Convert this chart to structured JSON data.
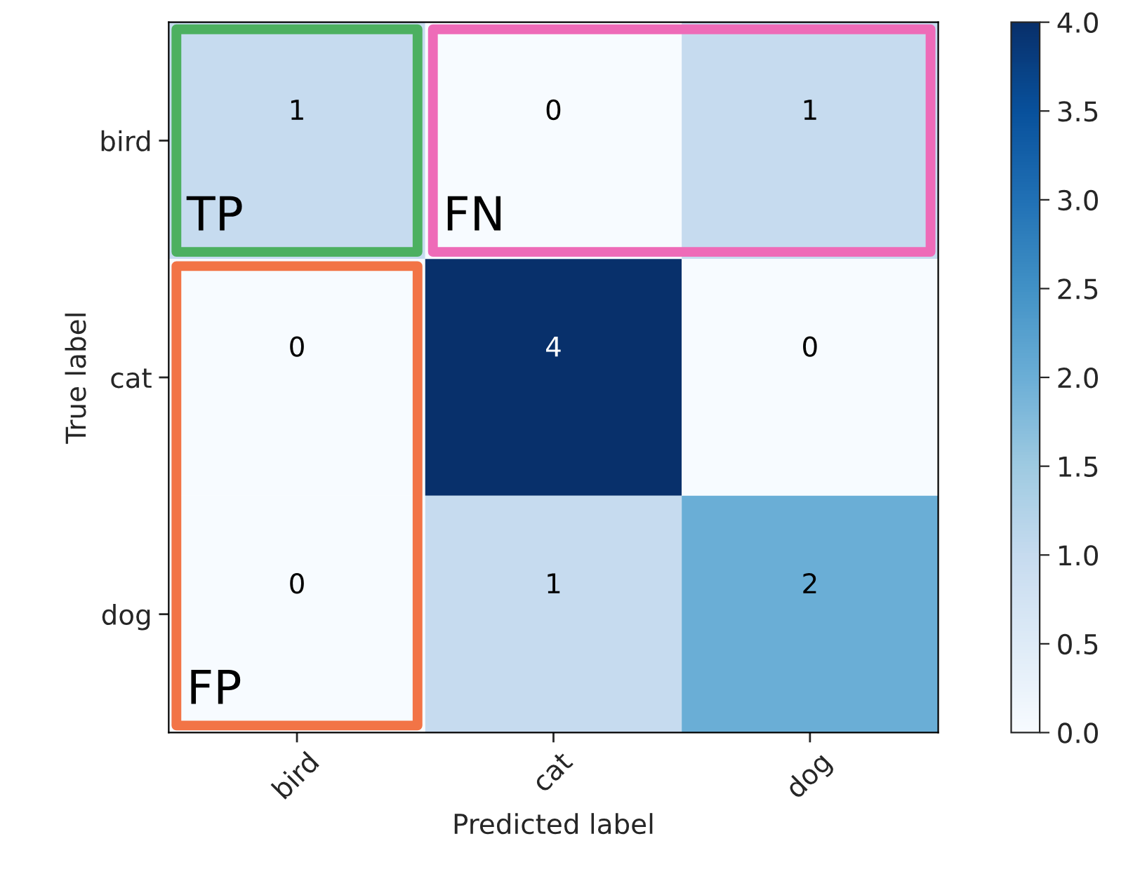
{
  "chart_data": {
    "type": "heatmap",
    "xlabel": "Predicted label",
    "ylabel": "True label",
    "categories": [
      "bird",
      "cat",
      "dog"
    ],
    "y_categories": [
      "bird",
      "cat",
      "dog"
    ],
    "cells": [
      [
        1,
        0,
        1
      ],
      [
        0,
        4,
        0
      ],
      [
        0,
        1,
        2
      ]
    ],
    "data_labels": true,
    "clim": [
      0,
      4
    ],
    "cticks": [
      {
        "value": 0,
        "label": "0.0"
      },
      {
        "value": 0.5,
        "label": "0.5"
      },
      {
        "value": 1,
        "label": "1.0"
      },
      {
        "value": 1.5,
        "label": "1.5"
      },
      {
        "value": 2,
        "label": "2.0"
      },
      {
        "value": 2.5,
        "label": "2.5"
      },
      {
        "value": 3,
        "label": "3.0"
      },
      {
        "value": 3.5,
        "label": "3.5"
      },
      {
        "value": 4,
        "label": "4.0"
      }
    ],
    "annotations": [
      "TP",
      "FN",
      "FP"
    ]
  }
}
